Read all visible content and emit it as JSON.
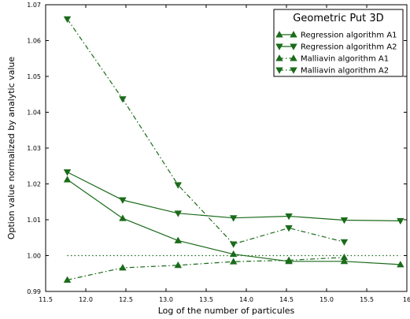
{
  "chart_data": {
    "type": "line",
    "title": "",
    "xlabel": "Log of the number of particules",
    "ylabel": "Option value normalized by analytic value",
    "xlim": [
      11.5,
      16.0
    ],
    "ylim": [
      0.99,
      1.07
    ],
    "xticks": [
      "11.5",
      "12.0",
      "12.5",
      "13.0",
      "13.5",
      "14.0",
      "14.5",
      "15.0",
      "15.5",
      "16"
    ],
    "yticks": [
      "0.99",
      "1.00",
      "1.01",
      "1.02",
      "1.03",
      "1.04",
      "1.05",
      "1.06",
      "1.07"
    ],
    "grid": false,
    "legend": {
      "title": "Geometric Put 3D",
      "placement": "top-right"
    },
    "color": "#1a6b1a",
    "reference_line": {
      "y": 1.0,
      "style": "dotted"
    },
    "series": [
      {
        "name": "Regression algorithm A1",
        "marker": "triangle-up",
        "line": "solid",
        "x": [
          11.77,
          12.46,
          13.15,
          13.84,
          14.53,
          15.22,
          15.92
        ],
        "y": [
          1.0212,
          1.0104,
          1.0042,
          1.0004,
          0.9984,
          0.9984,
          0.9975
        ]
      },
      {
        "name": "Regression algorithm A2",
        "marker": "triangle-down",
        "line": "solid",
        "x": [
          11.77,
          12.46,
          13.15,
          13.84,
          14.53,
          15.22,
          15.92
        ],
        "y": [
          1.0233,
          1.0155,
          1.0118,
          1.0105,
          1.011,
          1.0099,
          1.0097
        ]
      },
      {
        "name": "Malliavin algorithm A1",
        "marker": "triangle-up",
        "line": "dashdot",
        "x": [
          11.77,
          12.46,
          13.15,
          13.84,
          14.53,
          15.22
        ],
        "y": [
          0.9932,
          0.9966,
          0.9973,
          0.9983,
          0.9987,
          0.9995
        ]
      },
      {
        "name": "Malliavin algorithm A2",
        "marker": "triangle-down",
        "line": "dashdot",
        "x": [
          11.77,
          12.46,
          13.15,
          13.84,
          14.53,
          15.22
        ],
        "y": [
          1.066,
          1.0437,
          1.0197,
          1.0032,
          1.0077,
          1.0038
        ]
      }
    ]
  }
}
